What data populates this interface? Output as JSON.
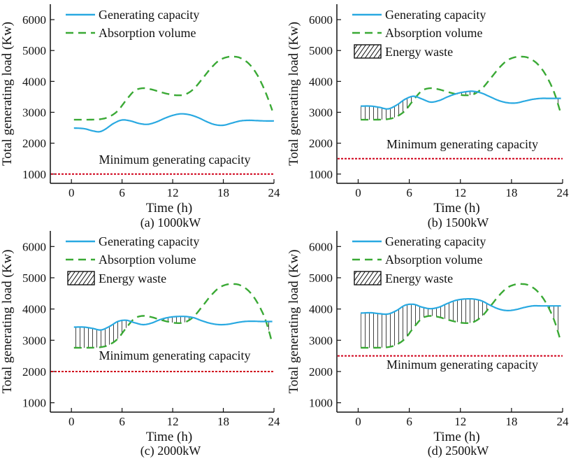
{
  "chart_data": [
    {
      "type": "line",
      "caption": "(a) 1000kW",
      "xlabel": "Time (h)",
      "ylabel": "Total generating load (Kw)",
      "xlim": [
        -2.5,
        24
      ],
      "ylim": [
        700,
        6500
      ],
      "xticks": [
        0,
        6,
        12,
        18,
        24
      ],
      "yticks": [
        1000,
        2000,
        3000,
        4000,
        5000,
        6000
      ],
      "legend_position": "top-left",
      "legend": [
        "Generating capacity",
        "Absorption volume"
      ],
      "min_capacity": {
        "label": "Minimum generating capacity",
        "value": 1000
      },
      "series": [
        {
          "name": "Generating capacity",
          "color": "#29a9e1",
          "dash": "solid",
          "x": [
            0.3,
            1.5,
            2.5,
            3.3,
            4,
            5,
            6,
            7,
            8,
            9,
            10,
            11,
            12,
            13,
            14,
            15,
            16,
            17,
            18,
            19,
            20,
            21,
            22,
            23,
            24
          ],
          "y": [
            2490,
            2470,
            2400,
            2370,
            2450,
            2640,
            2750,
            2720,
            2640,
            2610,
            2680,
            2800,
            2900,
            2950,
            2920,
            2830,
            2700,
            2600,
            2580,
            2650,
            2720,
            2740,
            2730,
            2720,
            2720
          ]
        },
        {
          "name": "Absorption volume",
          "color": "#3aa935",
          "dash": "dashed",
          "x": [
            0.3,
            2,
            3.5,
            4.5,
            5.5,
            6.5,
            7.5,
            8.5,
            9.5,
            10.5,
            11.5,
            12.5,
            13.5,
            14.5,
            15.5,
            16.5,
            17.5,
            18.5,
            19.3,
            20,
            21,
            22,
            23,
            23.8
          ],
          "y": [
            2760,
            2760,
            2780,
            2860,
            3050,
            3400,
            3700,
            3780,
            3740,
            3660,
            3590,
            3550,
            3580,
            3760,
            4080,
            4420,
            4680,
            4790,
            4800,
            4760,
            4580,
            4220,
            3650,
            3060
          ]
        }
      ]
    },
    {
      "type": "line",
      "caption": "(b) 1500kW",
      "xlabel": "Time (h)",
      "ylabel": "Total generating load (Kw)",
      "xlim": [
        -2.5,
        24
      ],
      "ylim": [
        700,
        6500
      ],
      "xticks": [
        0,
        6,
        12,
        18,
        24
      ],
      "yticks": [
        1000,
        2000,
        3000,
        4000,
        5000,
        6000
      ],
      "legend_position": "top-left",
      "legend": [
        "Generating capacity",
        "Absorption volume",
        "Energy waste"
      ],
      "min_capacity": {
        "label": "Minimum generating capacity",
        "value": 1500
      },
      "series": [
        {
          "name": "Generating capacity",
          "color": "#29a9e1",
          "dash": "solid",
          "x": [
            0.3,
            1.5,
            2.5,
            3.5,
            4.5,
            5.5,
            6.5,
            7.5,
            8.5,
            9.5,
            10.5,
            11.5,
            12.5,
            13.5,
            14.5,
            15.5,
            16.5,
            17.5,
            18.5,
            19.5,
            20.5,
            21.5,
            22.5,
            23.8
          ],
          "y": [
            3200,
            3200,
            3160,
            3110,
            3230,
            3420,
            3520,
            3430,
            3330,
            3380,
            3500,
            3600,
            3660,
            3680,
            3620,
            3500,
            3380,
            3310,
            3300,
            3360,
            3420,
            3450,
            3450,
            3450
          ]
        },
        {
          "name": "Absorption volume",
          "color": "#3aa935",
          "dash": "dashed",
          "x": [
            0.3,
            2,
            3.5,
            4.5,
            5.5,
            6.5,
            7.5,
            8.5,
            9.5,
            10.5,
            11.5,
            12.5,
            13.5,
            14.5,
            15.5,
            16.5,
            17.5,
            18.5,
            19.3,
            20,
            21,
            22,
            23,
            23.8
          ],
          "y": [
            2760,
            2760,
            2780,
            2860,
            3050,
            3400,
            3700,
            3780,
            3740,
            3660,
            3590,
            3550,
            3580,
            3760,
            4080,
            4420,
            4680,
            4790,
            4800,
            4760,
            4580,
            4220,
            3650,
            2950
          ]
        }
      ]
    },
    {
      "type": "line",
      "caption": "(c) 2000kW",
      "xlabel": "Time (h)",
      "ylabel": "Total generating load (Kw)",
      "xlim": [
        -2.5,
        24
      ],
      "ylim": [
        700,
        6500
      ],
      "xticks": [
        0,
        6,
        12,
        18,
        24
      ],
      "yticks": [
        1000,
        2000,
        3000,
        4000,
        5000,
        6000
      ],
      "legend_position": "top-left",
      "legend": [
        "Generating capacity",
        "Absorption volume",
        "Energy waste"
      ],
      "min_capacity": {
        "label": "Minimum generating capacity",
        "value": 2000
      },
      "series": [
        {
          "name": "Generating capacity",
          "color": "#29a9e1",
          "dash": "solid",
          "x": [
            0.3,
            1.5,
            2.5,
            3.5,
            4.5,
            5.5,
            6.5,
            7.5,
            8.5,
            9.5,
            10.5,
            11.5,
            12.5,
            13.5,
            14.5,
            15.5,
            16.5,
            17.5,
            18.5,
            19.5,
            20.5,
            21.5,
            22.5,
            23.8
          ],
          "y": [
            3420,
            3420,
            3380,
            3330,
            3440,
            3600,
            3640,
            3560,
            3500,
            3550,
            3660,
            3730,
            3760,
            3760,
            3720,
            3620,
            3540,
            3500,
            3510,
            3560,
            3600,
            3610,
            3600,
            3600
          ]
        },
        {
          "name": "Absorption volume",
          "color": "#3aa935",
          "dash": "dashed",
          "x": [
            0.3,
            2,
            3.5,
            4.5,
            5.5,
            6.5,
            7.5,
            8.5,
            9.5,
            10.5,
            11.5,
            12.5,
            13.5,
            14.5,
            15.5,
            16.5,
            17.5,
            18.5,
            19.3,
            20,
            21,
            22,
            23,
            23.8
          ],
          "y": [
            2760,
            2760,
            2780,
            2860,
            3050,
            3400,
            3700,
            3780,
            3740,
            3660,
            3590,
            3550,
            3580,
            3760,
            4080,
            4420,
            4680,
            4790,
            4800,
            4760,
            4580,
            4220,
            3650,
            2900
          ]
        }
      ]
    },
    {
      "type": "line",
      "caption": "(d) 2500kW",
      "xlabel": "Time (h)",
      "ylabel": "Total generating load (Kw)",
      "xlim": [
        -2.5,
        24
      ],
      "ylim": [
        700,
        6500
      ],
      "xticks": [
        0,
        6,
        12,
        18,
        24
      ],
      "yticks": [
        1000,
        2000,
        3000,
        4000,
        5000,
        6000
      ],
      "legend_position": "top-left",
      "legend": [
        "Generating capacity",
        "Absorption volume",
        "Energy waste"
      ],
      "min_capacity": {
        "label": "Minimum generating capacity",
        "value": 2500
      },
      "series": [
        {
          "name": "Generating capacity",
          "color": "#29a9e1",
          "dash": "solid",
          "x": [
            0.3,
            1.5,
            2.5,
            3.5,
            4.5,
            5.5,
            6.5,
            7.5,
            8.5,
            9.5,
            10.5,
            11.5,
            12.5,
            13.5,
            14.5,
            15.5,
            16.5,
            17.5,
            18.5,
            19.5,
            20.5,
            21.5,
            22.5,
            23.8
          ],
          "y": [
            3870,
            3880,
            3850,
            3840,
            3950,
            4120,
            4150,
            4060,
            4010,
            4060,
            4180,
            4280,
            4320,
            4320,
            4260,
            4120,
            4000,
            3950,
            3980,
            4050,
            4100,
            4100,
            4100,
            4100
          ]
        },
        {
          "name": "Absorption volume",
          "color": "#3aa935",
          "dash": "dashed",
          "x": [
            0.3,
            2,
            3.5,
            4.5,
            5.5,
            6.5,
            7.5,
            8.5,
            9.5,
            10.5,
            11.5,
            12.5,
            13.5,
            14.5,
            15.5,
            16.5,
            17.5,
            18.5,
            19.3,
            20,
            21,
            22,
            23,
            23.8
          ],
          "y": [
            2760,
            2760,
            2780,
            2860,
            3050,
            3400,
            3700,
            3780,
            3740,
            3660,
            3590,
            3550,
            3580,
            3760,
            4080,
            4420,
            4680,
            4790,
            4800,
            4760,
            4580,
            4220,
            3650,
            2950
          ]
        }
      ]
    }
  ]
}
